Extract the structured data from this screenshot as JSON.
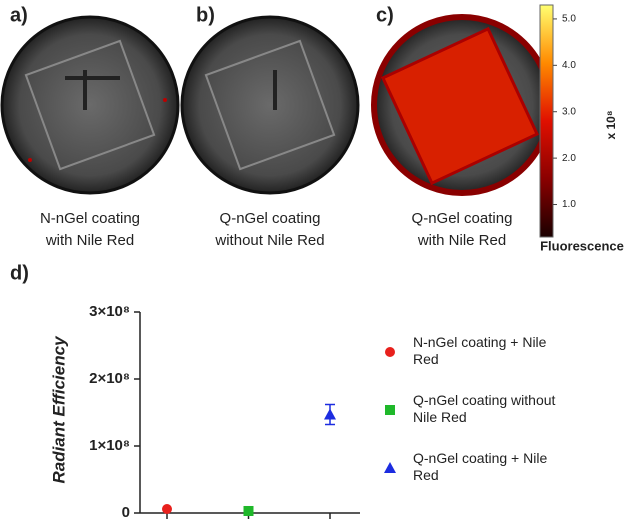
{
  "panels": [
    {
      "label": "a)",
      "caption": [
        "N-nGel coating",
        "with Nile Red"
      ]
    },
    {
      "label": "b)",
      "caption": [
        "Q-nGel coating",
        "without Nile Red"
      ]
    },
    {
      "label": "c)",
      "caption": [
        "Q-nGel coating",
        "with Nile Red"
      ]
    }
  ],
  "colorbar": {
    "lim": [
      0.3,
      5.3
    ],
    "ticks": [
      {
        "value": 1,
        "label": "1.0"
      },
      {
        "value": 2,
        "label": "2.0"
      },
      {
        "value": 3,
        "label": "3.0"
      },
      {
        "value": 4,
        "label": "4.0"
      },
      {
        "value": 5,
        "label": "5.0"
      }
    ],
    "multiplier": "x 10⁸",
    "label": "Fluorescence"
  },
  "chart_data": {
    "type": "scatter",
    "panel_label": "d)",
    "y_label": "Radiant Efficiency",
    "categories": [
      null,
      null,
      null
    ],
    "ylim": [
      0,
      300000000
    ],
    "yticks": [
      0,
      {
        "value": 100000000,
        "label": "1×10⁸"
      },
      {
        "value": 200000000,
        "label": "2×10⁸"
      },
      {
        "value": 300000000,
        "label": "3×10⁸"
      }
    ],
    "series": [
      {
        "name": "N-nGel coating + Nile Red",
        "color": "#e8201c",
        "marker": "circle",
        "values": [
          6000000,
          null,
          null
        ]
      },
      {
        "name": "Q-nGel coating without Nile Red",
        "color": "#1fb82a",
        "marker": "square",
        "values": [
          null,
          3000000,
          null
        ]
      },
      {
        "name": "Q-nGel coating + Nile Red",
        "color": "#1c2ce0",
        "marker": "triangle",
        "values": [
          null,
          null,
          147000000
        ],
        "errors": [
          null,
          null,
          15000000
        ]
      }
    ]
  }
}
